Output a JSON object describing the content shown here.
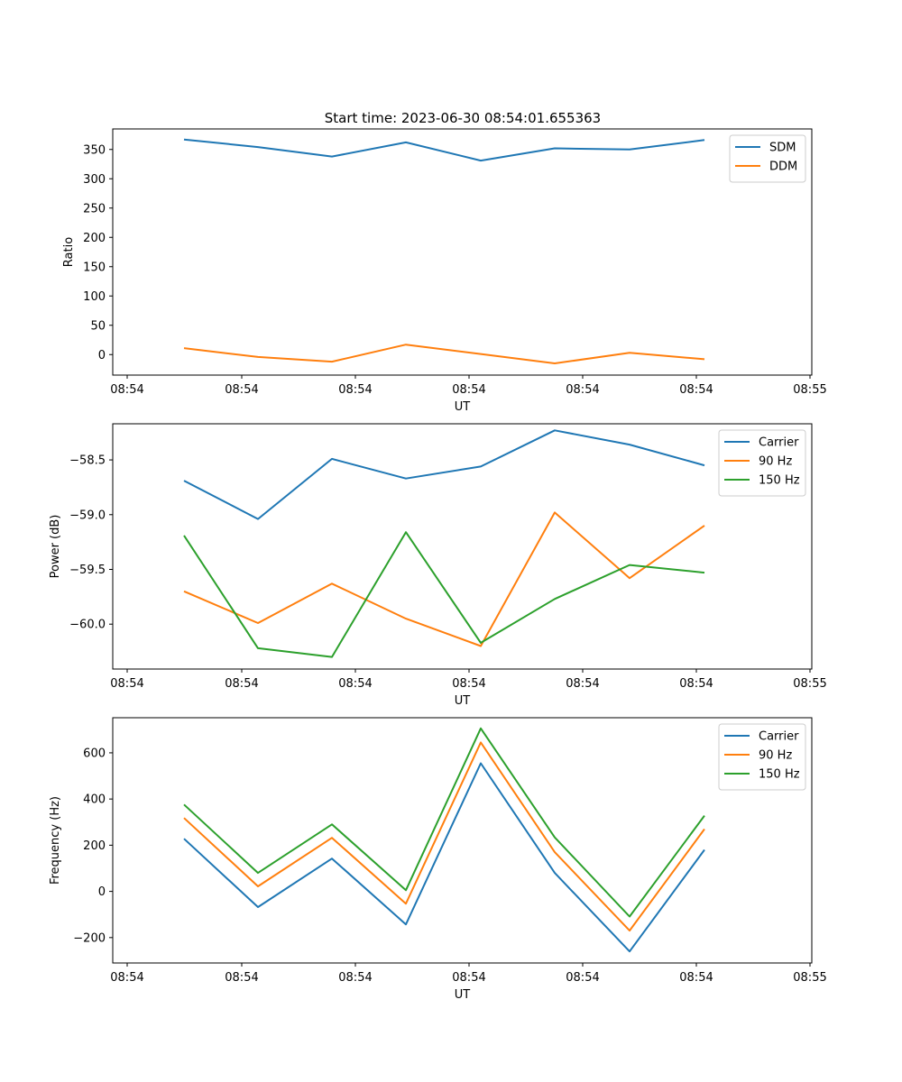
{
  "figure_title": "Start time: 2023-06-30 08:54:01.655363",
  "chart_data": [
    {
      "type": "line",
      "xlabel": "UT",
      "ylabel": "Ratio",
      "x_tick_labels": [
        "08:54",
        "08:54",
        "08:54",
        "08:54",
        "08:54",
        "08:54",
        "08:54"
      ],
      "x_tick_last_label": "08:55",
      "y_ticks": [
        0,
        50,
        100,
        150,
        200,
        250,
        300,
        350
      ],
      "ylim": [
        -35,
        385
      ],
      "legend_position": "top-right",
      "series": [
        {
          "name": "SDM",
          "color": "#1f77b4",
          "values": [
            367,
            354,
            338,
            362,
            331,
            352,
            350,
            366
          ]
        },
        {
          "name": "DDM",
          "color": "#ff7f0e",
          "values": [
            11,
            -4,
            -12,
            17,
            1,
            -15,
            3,
            -8
          ]
        }
      ]
    },
    {
      "type": "line",
      "xlabel": "UT",
      "ylabel": "Power (dB)",
      "x_tick_labels": [
        "08:54",
        "08:54",
        "08:54",
        "08:54",
        "08:54",
        "08:54",
        "08:54"
      ],
      "x_tick_last_label": "08:55",
      "y_ticks": [
        -60.0,
        -59.5,
        -59.0,
        -58.5
      ],
      "y_tick_labels": [
        "−60.0",
        "−59.5",
        "−59.0",
        "−58.5"
      ],
      "ylim": [
        -60.41,
        -58.17
      ],
      "legend_position": "top-right",
      "series": [
        {
          "name": "Carrier",
          "color": "#1f77b4",
          "values": [
            -58.69,
            -59.04,
            -58.49,
            -58.67,
            -58.56,
            -58.23,
            -58.36,
            -58.55
          ]
        },
        {
          "name": "90 Hz",
          "color": "#ff7f0e",
          "values": [
            -59.7,
            -59.99,
            -59.63,
            -59.95,
            -60.2,
            -58.98,
            -59.58,
            -59.1
          ]
        },
        {
          "name": "150 Hz",
          "color": "#2ca02c",
          "values": [
            -59.19,
            -60.22,
            -60.3,
            -59.16,
            -60.17,
            -59.77,
            -59.46,
            -59.53
          ]
        }
      ]
    },
    {
      "type": "line",
      "xlabel": "UT",
      "ylabel": "Frequency (Hz)",
      "x_tick_labels": [
        "08:54",
        "08:54",
        "08:54",
        "08:54",
        "08:54",
        "08:54",
        "08:54"
      ],
      "x_tick_last_label": "08:55",
      "y_ticks": [
        -200,
        0,
        200,
        400,
        600
      ],
      "y_tick_labels": [
        "−200",
        "0",
        "200",
        "400",
        "600"
      ],
      "ylim": [
        -310,
        752
      ],
      "legend_position": "top-right",
      "series": [
        {
          "name": "Carrier",
          "color": "#1f77b4",
          "values": [
            228,
            -68,
            142,
            -143,
            555,
            80,
            -260,
            180
          ]
        },
        {
          "name": "90 Hz",
          "color": "#ff7f0e",
          "values": [
            318,
            22,
            232,
            -53,
            645,
            170,
            -170,
            270
          ]
        },
        {
          "name": "150 Hz",
          "color": "#2ca02c",
          "values": [
            376,
            80,
            290,
            5,
            706,
            234,
            -109,
            328
          ]
        }
      ]
    }
  ]
}
